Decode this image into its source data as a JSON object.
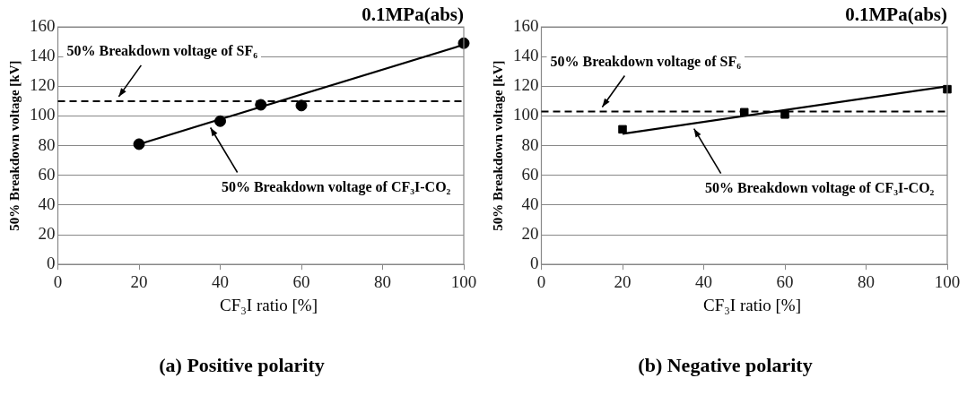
{
  "chart_data": [
    {
      "type": "scatter",
      "title": "(a) Positive polarity",
      "xlabel": "CF₃I ratio [%]",
      "ylabel": "50% Breakdown voltage [kV]",
      "annotations": [
        "0.1MPa(abs)"
      ],
      "series": [
        {
          "color": "#000000",
          "marker": "circle",
          "x": [
            20,
            40,
            50,
            60,
            100
          ],
          "values": [
            81,
            96.5,
            107.5,
            107,
            149
          ]
        },
        {
          "type": "line",
          "name": "50% Breakdown voltage of CF₃I-CO₂",
          "color": "#000000",
          "marker": "none",
          "x": [
            20,
            100
          ],
          "values": [
            81,
            148
          ]
        }
      ],
      "ref_lines": [
        {
          "axis": "y",
          "value": 110,
          "label": "50% Breakdown voltage of SF₆",
          "color": "#000000",
          "line_style": "dashed"
        }
      ],
      "xlim": [
        0,
        100
      ],
      "xticks": [
        0,
        20,
        40,
        60,
        80,
        100
      ],
      "ylim": [
        0,
        160
      ],
      "yticks": [
        0,
        20,
        40,
        60,
        80,
        100,
        120,
        140,
        160
      ],
      "grid": "y",
      "legend": false
    },
    {
      "type": "scatter",
      "title": "(b) Negative polarity",
      "xlabel": "CF₃I ratio [%]",
      "ylabel": "50% Breakdown voltage [kV]",
      "annotations": [
        "0.1MPa(abs)"
      ],
      "series": [
        {
          "color": "#000000",
          "marker": "square",
          "x": [
            20,
            50,
            60,
            100
          ],
          "values": [
            91,
            102.5,
            101,
            118
          ]
        },
        {
          "type": "line",
          "name": "50% Breakdown voltage of CF₃I-CO₂",
          "color": "#000000",
          "marker": "none",
          "x": [
            20,
            100
          ],
          "values": [
            88,
            120
          ]
        }
      ],
      "ref_lines": [
        {
          "axis": "y",
          "value": 103,
          "label": "50% Breakdown voltage of SF₆",
          "color": "#000000",
          "line_style": "dashed"
        }
      ],
      "xlim": [
        0,
        100
      ],
      "xticks": [
        0,
        20,
        40,
        60,
        80,
        100
      ],
      "ylim": [
        0,
        160
      ],
      "yticks": [
        0,
        20,
        40,
        60,
        80,
        100,
        120,
        140,
        160
      ],
      "grid": "y",
      "legend": false
    }
  ]
}
